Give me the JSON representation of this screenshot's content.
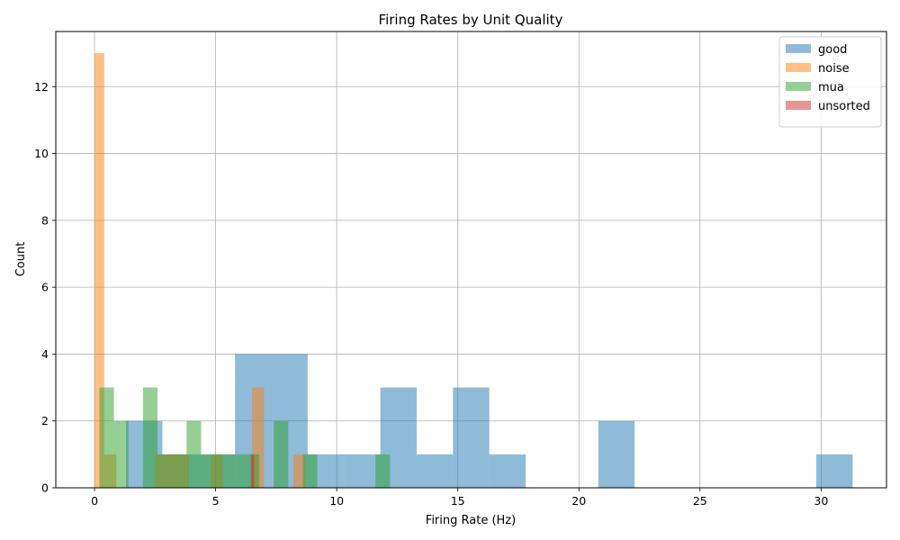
{
  "chart_data": {
    "type": "histogram",
    "title": "Firing Rates by Unit Quality",
    "xlabel": "Firing Rate (Hz)",
    "ylabel": "Count",
    "xlim": [
      -1.6,
      32.7
    ],
    "ylim": [
      0,
      13.65
    ],
    "xticks": [
      0,
      5,
      10,
      15,
      20,
      25,
      30
    ],
    "yticks": [
      0,
      2,
      4,
      6,
      8,
      10,
      12
    ],
    "grid": true,
    "legend_position": "top-right",
    "series": [
      {
        "name": "good",
        "color": "#1f77b4",
        "bins": [
          {
            "x0": 1.3,
            "x1": 2.8,
            "count": 2
          },
          {
            "x0": 2.8,
            "x1": 4.3,
            "count": 1
          },
          {
            "x0": 4.3,
            "x1": 5.8,
            "count": 1
          },
          {
            "x0": 5.8,
            "x1": 7.3,
            "count": 4
          },
          {
            "x0": 7.3,
            "x1": 8.8,
            "count": 4
          },
          {
            "x0": 8.8,
            "x1": 10.3,
            "count": 1
          },
          {
            "x0": 10.3,
            "x1": 11.8,
            "count": 1
          },
          {
            "x0": 11.8,
            "x1": 13.3,
            "count": 3
          },
          {
            "x0": 13.3,
            "x1": 14.8,
            "count": 1
          },
          {
            "x0": 14.8,
            "x1": 16.3,
            "count": 3
          },
          {
            "x0": 16.3,
            "x1": 17.8,
            "count": 1
          },
          {
            "x0": 20.8,
            "x1": 22.3,
            "count": 2
          },
          {
            "x0": 29.8,
            "x1": 31.3,
            "count": 1
          }
        ]
      },
      {
        "name": "noise",
        "color": "#ff7f0e",
        "bins": [
          {
            "x0": 0.0,
            "x1": 0.4,
            "count": 13
          },
          {
            "x0": 0.4,
            "x1": 0.9,
            "count": 1
          },
          {
            "x0": 2.5,
            "x1": 3.9,
            "count": 1
          },
          {
            "x0": 4.8,
            "x1": 5.3,
            "count": 1
          },
          {
            "x0": 6.5,
            "x1": 7.0,
            "count": 3
          },
          {
            "x0": 8.2,
            "x1": 8.7,
            "count": 1
          }
        ]
      },
      {
        "name": "mua",
        "color": "#2ca02c",
        "bins": [
          {
            "x0": 0.2,
            "x1": 0.8,
            "count": 3
          },
          {
            "x0": 0.8,
            "x1": 1.4,
            "count": 2
          },
          {
            "x0": 2.0,
            "x1": 2.6,
            "count": 3
          },
          {
            "x0": 2.6,
            "x1": 3.8,
            "count": 1
          },
          {
            "x0": 3.8,
            "x1": 4.4,
            "count": 2
          },
          {
            "x0": 4.4,
            "x1": 6.8,
            "count": 1
          },
          {
            "x0": 7.4,
            "x1": 8.0,
            "count": 2
          },
          {
            "x0": 8.6,
            "x1": 9.2,
            "count": 1
          },
          {
            "x0": 11.6,
            "x1": 12.2,
            "count": 1
          }
        ]
      },
      {
        "name": "unsorted",
        "color": "#d62728",
        "bins": [
          {
            "x0": 6.45,
            "x1": 6.6,
            "count": 1
          }
        ]
      }
    ]
  }
}
